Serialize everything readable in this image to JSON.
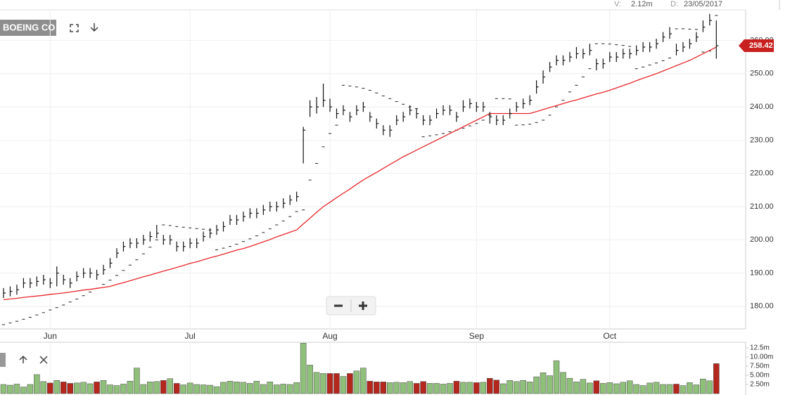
{
  "header": {
    "v_label": "V:",
    "v_value": "2.12m",
    "d_label": "D:",
    "d_value": "23/05/2017"
  },
  "chart_data": [
    {
      "type": "ohlc",
      "title": "BOEING CO",
      "categories": [
        null,
        null,
        null,
        null,
        null,
        null,
        null,
        "Jun",
        null,
        null,
        null,
        null,
        null,
        null,
        null,
        null,
        null,
        null,
        null,
        null,
        null,
        null,
        null,
        null,
        null,
        null,
        null,
        null,
        "Jul",
        null,
        null,
        null,
        null,
        null,
        null,
        null,
        null,
        null,
        null,
        null,
        null,
        null,
        null,
        null,
        null,
        null,
        null,
        null,
        null,
        "Aug",
        null,
        null,
        null,
        null,
        null,
        null,
        null,
        null,
        null,
        null,
        null,
        null,
        null,
        null,
        null,
        null,
        null,
        null,
        null,
        null,
        null,
        "Sep",
        null,
        null,
        null,
        null,
        null,
        null,
        null,
        null,
        null,
        null,
        null,
        null,
        null,
        null,
        null,
        null,
        null,
        null,
        null,
        "Oct",
        null,
        null,
        null,
        null,
        null,
        null,
        null,
        null,
        null,
        null,
        null,
        null,
        null,
        null,
        null,
        null
      ],
      "high": [
        185.5,
        186,
        186.5,
        188.5,
        188.5,
        189,
        189.5,
        188.5,
        192,
        189.5,
        188.5,
        190.5,
        191.5,
        191.5,
        191,
        192.5,
        194.5,
        197.5,
        199.5,
        200.5,
        200.5,
        201.5,
        202.5,
        204.5,
        201.5,
        201.5,
        199.5,
        199.5,
        200.5,
        200.5,
        202.5,
        203.5,
        204.5,
        205.5,
        207.5,
        207.5,
        208.5,
        209.5,
        209.5,
        210.5,
        211.5,
        211.5,
        212.5,
        213.5,
        214.5,
        234,
        242,
        243,
        247,
        242.5,
        239.5,
        240.5,
        238.5,
        240.5,
        241.5,
        238.5,
        236.5,
        234.5,
        234.5,
        237.5,
        238.5,
        240.5,
        239.5,
        237.5,
        237.5,
        239.5,
        240.5,
        240.5,
        238.5,
        242,
        242.5,
        241.5,
        241.5,
        238.5,
        237.5,
        237.5,
        239.5,
        241.5,
        242.5,
        243.5,
        248,
        251,
        253.5,
        255.5,
        255.5,
        256.5,
        258,
        257.5,
        259,
        254.5,
        254.5,
        256.5,
        256.5,
        257.5,
        257.5,
        258.5,
        259.5,
        259.5,
        260.5,
        262.5,
        264,
        259,
        259.5,
        260.5,
        262.5,
        266,
        268,
        266
      ],
      "low": [
        182.5,
        183,
        183.5,
        185.5,
        185.5,
        186,
        186.5,
        185.5,
        186,
        186.5,
        185.5,
        187.5,
        188.5,
        188.5,
        188,
        189.5,
        191.5,
        194.5,
        196.5,
        197.5,
        197.5,
        198.5,
        199.5,
        200.5,
        198.5,
        198.5,
        196.5,
        196.5,
        197.5,
        197.5,
        199.5,
        200.5,
        201.5,
        202.5,
        204.5,
        204.5,
        205.5,
        206.5,
        206.5,
        207.5,
        208.5,
        208.5,
        209.5,
        210.5,
        211.5,
        223,
        237,
        238,
        240,
        238.5,
        236.5,
        237.5,
        235.5,
        237.5,
        238.5,
        235.5,
        233.5,
        231.5,
        231,
        234.5,
        235.5,
        237.5,
        236.5,
        234.5,
        234.5,
        236.5,
        237.5,
        237.5,
        235.5,
        238.5,
        239.5,
        238.5,
        238.5,
        235,
        234.5,
        234.5,
        236.5,
        238.5,
        239.5,
        240.5,
        244,
        247,
        250.5,
        252.5,
        252.5,
        253.5,
        254.5,
        254.5,
        255.5,
        251,
        251.5,
        253.5,
        253.5,
        254.5,
        254.5,
        255.5,
        256.5,
        256.5,
        257.5,
        259.5,
        260.5,
        255.5,
        256.5,
        257.5,
        259.5,
        262.5,
        264.5,
        254.5
      ],
      "close": [
        184,
        184.5,
        185,
        187,
        187,
        187.5,
        188,
        187,
        190,
        188,
        187,
        189,
        190,
        190,
        189.5,
        191,
        193,
        196,
        198,
        199,
        199,
        200,
        201,
        202,
        200,
        200,
        198,
        198,
        199,
        199,
        201,
        202,
        203,
        204,
        206,
        206,
        207,
        208,
        208,
        209,
        210,
        210,
        211,
        212,
        213,
        233,
        240,
        240,
        242,
        240,
        238,
        239,
        237,
        239,
        240,
        237,
        235,
        233,
        233,
        236,
        237,
        239,
        238,
        236,
        236,
        238,
        239,
        239,
        237,
        240,
        241,
        240,
        240,
        237,
        236,
        236,
        238,
        240,
        241,
        242,
        246,
        249,
        252,
        254,
        254,
        255,
        256,
        256,
        257,
        253,
        253,
        255,
        255,
        256,
        256,
        257,
        258,
        258,
        259,
        261,
        262,
        257,
        258,
        259,
        261,
        264,
        266,
        258.42
      ],
      "ma": [
        182,
        182.2,
        182.4,
        182.7,
        182.9,
        183.1,
        183.3,
        183.6,
        183.8,
        184,
        184.3,
        184.6,
        184.9,
        185.1,
        185.4,
        185.7,
        186,
        186.6,
        187.1,
        187.7,
        188.3,
        188.9,
        189.4,
        190,
        190.6,
        191.1,
        191.7,
        192.3,
        192.9,
        193.4,
        194,
        194.6,
        195.1,
        195.7,
        196.3,
        196.9,
        197.4,
        198,
        198.7,
        199.4,
        200.1,
        200.9,
        201.6,
        202.3,
        203,
        204.8,
        206.5,
        208.3,
        210,
        211.3,
        212.7,
        214,
        215.3,
        216.7,
        218,
        219.2,
        220.3,
        221.5,
        222.7,
        223.8,
        225,
        226,
        227,
        228,
        229,
        230,
        231,
        232,
        233,
        234,
        235,
        236,
        237,
        238,
        238,
        238,
        238,
        238,
        238,
        238,
        238.6,
        239.2,
        239.8,
        240.4,
        241,
        241.6,
        242.1,
        242.7,
        243.3,
        243.9,
        244.4,
        245,
        245.7,
        246.4,
        247.1,
        247.9,
        248.6,
        249.3,
        250,
        250.8,
        251.6,
        252.4,
        253.2,
        254,
        255,
        256,
        257,
        258
      ],
      "sar": [
        174.5,
        175,
        175.5,
        176.1,
        176.7,
        177.4,
        178.1,
        178.9,
        179.6,
        180.4,
        181.3,
        182.2,
        183.2,
        184.3,
        185.4,
        186.6,
        187.9,
        189.3,
        190.8,
        192.4,
        194,
        195.8,
        197.8,
        200,
        204.5,
        204.3,
        204,
        203.8,
        203.6,
        203.4,
        203.2,
        203,
        197,
        197.5,
        198,
        198.7,
        199.5,
        200.3,
        201.2,
        202.2,
        203.3,
        204.5,
        205.7,
        207,
        208.5,
        209,
        218,
        223,
        228,
        232,
        234.5,
        246.5,
        246.3,
        246,
        245.6,
        245,
        244.2,
        243.3,
        242.5,
        241.6,
        240.8,
        240,
        239.5,
        231,
        231.3,
        231.6,
        232,
        232.5,
        233,
        233.6,
        234.3,
        235,
        236,
        237.5,
        242.5,
        242.5,
        242.4,
        234.5,
        234.6,
        234.8,
        235.3,
        236,
        237.5,
        240,
        242,
        244.5,
        246.5,
        249,
        251.5,
        259,
        259,
        258.9,
        258.7,
        258.5,
        258.2,
        251.5,
        252,
        252.6,
        253.2,
        253.9,
        254.7,
        263.5,
        263.5,
        263.4,
        263.3,
        256.5,
        256.8,
        267.5
      ],
      "bar_color": "#111111",
      "ma_color": "#e8262a",
      "sar_color": "#222222",
      "tag_color": "#c8201e",
      "ylim": [
        173.2,
        269.2
      ],
      "yticks": [
        {
          "value": 180,
          "label": "180.00"
        },
        {
          "value": 190,
          "label": "190.00"
        },
        {
          "value": 200,
          "label": "200.00"
        },
        {
          "value": 210,
          "label": "210.00"
        },
        {
          "value": 220,
          "label": "220.00"
        },
        {
          "value": 230,
          "label": "230.00"
        },
        {
          "value": 240,
          "label": "240.00"
        },
        {
          "value": 250,
          "label": "250.00"
        },
        {
          "value": 260,
          "label": "260.00"
        }
      ],
      "grid": true
    },
    {
      "type": "volume",
      "values": [
        2.5,
        2.3,
        2.6,
        1.8,
        2.5,
        5.2,
        3.3,
        2.9,
        3.6,
        3.2,
        2.8,
        2.9,
        3.1,
        2.7,
        3.2,
        3.6,
        2.4,
        2.2,
        2.6,
        3.4,
        7,
        2.5,
        3.2,
        3.3,
        3.6,
        4.1,
        2.8,
        2.4,
        2.9,
        2.5,
        2.4,
        2.3,
        1.9,
        3.1,
        3.4,
        3.2,
        3.1,
        2.8,
        3.4,
        2.5,
        3.2,
        2.4,
        2.6,
        2.5,
        3,
        13.8,
        7.8,
        5.8,
        5.5,
        5.5,
        5.5,
        4.7,
        5.5,
        6.2,
        7,
        3.4,
        3.2,
        3.2,
        3,
        3.1,
        3,
        3.3,
        2.8,
        3.3,
        2.8,
        2.8,
        2.6,
        2.8,
        3.4,
        3.1,
        3.1,
        3,
        3.1,
        4.2,
        3.7,
        2.7,
        3.6,
        3.3,
        3.6,
        3.2,
        4.6,
        5.7,
        4.9,
        9,
        5.8,
        4.2,
        3.2,
        3.9,
        2.9,
        3.5,
        2.8,
        3,
        2.7,
        3.1,
        3.5,
        2.5,
        2.2,
        2.9,
        3.1,
        2.5,
        2.5,
        2.6,
        2.2,
        3,
        2.4,
        4,
        3.5,
        8.2
      ],
      "up_color": "#8fc07a",
      "down_color": "#b3271c",
      "ylim": [
        0,
        14.04
      ],
      "yticks": [
        {
          "value": 2.5,
          "label": "2.50m"
        },
        {
          "value": 5,
          "label": "5.00m"
        },
        {
          "value": 7.5,
          "label": "7.50m"
        },
        {
          "value": 10,
          "label": "10.00m"
        },
        {
          "value": 12.5,
          "label": "12.5m"
        }
      ]
    }
  ]
}
